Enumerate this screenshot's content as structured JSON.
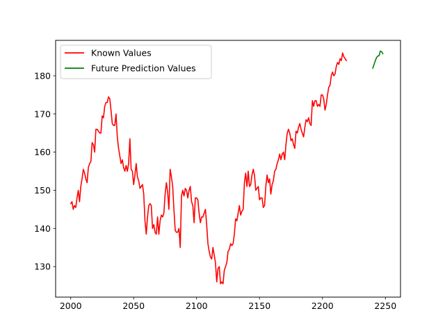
{
  "chart_data": {
    "type": "line",
    "title": "",
    "xlabel": "",
    "ylabel": "",
    "xlim": [
      1988,
      2262
    ],
    "ylim": [
      122.0,
      189.3
    ],
    "xticks": [
      2000,
      2050,
      2100,
      2150,
      2200,
      2250
    ],
    "yticks": [
      130,
      140,
      150,
      160,
      170,
      180
    ],
    "grid": false,
    "legend_position": "upper-left",
    "series": [
      {
        "name": "Known Values",
        "color": "#ff0000",
        "points": [
          [
            2000,
            146.5
          ],
          [
            2001,
            147.0
          ],
          [
            2002,
            145.0
          ],
          [
            2003,
            146.0
          ],
          [
            2004,
            145.5
          ],
          [
            2005,
            148.0
          ],
          [
            2006,
            150.0
          ],
          [
            2007,
            147.0
          ],
          [
            2008,
            151.0
          ],
          [
            2009,
            153.0
          ],
          [
            2010,
            155.5
          ],
          [
            2011,
            154.5
          ],
          [
            2012,
            153.0
          ],
          [
            2013,
            152.0
          ],
          [
            2014,
            156.0
          ],
          [
            2015,
            157.0
          ],
          [
            2016,
            157.5
          ],
          [
            2017,
            162.5
          ],
          [
            2018,
            162.0
          ],
          [
            2019,
            160.0
          ],
          [
            2020,
            166.0
          ],
          [
            2021,
            166.0
          ],
          [
            2022,
            165.5
          ],
          [
            2023,
            165.0
          ],
          [
            2024,
            165.0
          ],
          [
            2025,
            169.5
          ],
          [
            2026,
            169.0
          ],
          [
            2027,
            172.0
          ],
          [
            2028,
            173.0
          ],
          [
            2029,
            173.0
          ],
          [
            2030,
            174.5
          ],
          [
            2031,
            174.0
          ],
          [
            2032,
            171.0
          ],
          [
            2033,
            167.5
          ],
          [
            2034,
            167.0
          ],
          [
            2035,
            167.0
          ],
          [
            2036,
            170.0
          ],
          [
            2037,
            164.0
          ],
          [
            2038,
            161.0
          ],
          [
            2039,
            159.0
          ],
          [
            2040,
            157.0
          ],
          [
            2041,
            158.0
          ],
          [
            2042,
            156.0
          ],
          [
            2043,
            155.0
          ],
          [
            2044,
            156.5
          ],
          [
            2045,
            155.0
          ],
          [
            2046,
            157.0
          ],
          [
            2047,
            163.5
          ],
          [
            2048,
            155.5
          ],
          [
            2049,
            155.0
          ],
          [
            2050,
            151.5
          ],
          [
            2051,
            154.0
          ],
          [
            2052,
            157.0
          ],
          [
            2053,
            153.5
          ],
          [
            2054,
            152.5
          ],
          [
            2055,
            150.5
          ],
          [
            2056,
            151.0
          ],
          [
            2057,
            151.5
          ],
          [
            2058,
            149.0
          ],
          [
            2059,
            142.0
          ],
          [
            2060,
            138.5
          ],
          [
            2061,
            143.0
          ],
          [
            2062,
            146.0
          ],
          [
            2063,
            146.5
          ],
          [
            2064,
            146.0
          ],
          [
            2065,
            140.0
          ],
          [
            2066,
            141.0
          ],
          [
            2067,
            139.0
          ],
          [
            2068,
            138.5
          ],
          [
            2069,
            143.0
          ],
          [
            2070,
            138.5
          ],
          [
            2071,
            142.0
          ],
          [
            2072,
            143.5
          ],
          [
            2073,
            143.0
          ],
          [
            2074,
            144.0
          ],
          [
            2075,
            149.0
          ],
          [
            2076,
            152.0
          ],
          [
            2077,
            149.5
          ],
          [
            2078,
            145.0
          ],
          [
            2079,
            155.5
          ],
          [
            2080,
            153.5
          ],
          [
            2081,
            151.0
          ],
          [
            2082,
            145.0
          ],
          [
            2083,
            139.5
          ],
          [
            2084,
            139.0
          ],
          [
            2085,
            139.0
          ],
          [
            2086,
            140.0
          ],
          [
            2087,
            135.0
          ],
          [
            2088,
            148.5
          ],
          [
            2089,
            150.0
          ],
          [
            2090,
            148.5
          ],
          [
            2091,
            150.5
          ],
          [
            2092,
            150.0
          ],
          [
            2093,
            148.0
          ],
          [
            2094,
            150.0
          ],
          [
            2095,
            151.0
          ],
          [
            2096,
            147.0
          ],
          [
            2097,
            146.0
          ],
          [
            2098,
            141.5
          ],
          [
            2099,
            148.0
          ],
          [
            2100,
            148.0
          ],
          [
            2101,
            147.5
          ],
          [
            2102,
            144.0
          ],
          [
            2103,
            141.5
          ],
          [
            2104,
            143.0
          ],
          [
            2105,
            143.0
          ],
          [
            2106,
            144.0
          ],
          [
            2107,
            145.0
          ],
          [
            2108,
            141.0
          ],
          [
            2109,
            136.0
          ],
          [
            2110,
            134.0
          ],
          [
            2111,
            132.5
          ],
          [
            2112,
            132.0
          ],
          [
            2113,
            135.0
          ],
          [
            2114,
            133.0
          ],
          [
            2115,
            131.0
          ],
          [
            2116,
            126.0
          ],
          [
            2117,
            129.5
          ],
          [
            2118,
            130.0
          ],
          [
            2119,
            125.5
          ],
          [
            2120,
            126.0
          ],
          [
            2121,
            125.5
          ],
          [
            2122,
            129.0
          ],
          [
            2123,
            130.0
          ],
          [
            2124,
            131.0
          ],
          [
            2125,
            134.0
          ],
          [
            2126,
            134.5
          ],
          [
            2127,
            136.0
          ],
          [
            2128,
            135.5
          ],
          [
            2129,
            136.0
          ],
          [
            2130,
            138.5
          ],
          [
            2131,
            142.5
          ],
          [
            2132,
            142.0
          ],
          [
            2133,
            144.0
          ],
          [
            2134,
            146.0
          ],
          [
            2135,
            143.5
          ],
          [
            2136,
            144.5
          ],
          [
            2137,
            145.0
          ],
          [
            2138,
            152.0
          ],
          [
            2139,
            154.5
          ],
          [
            2140,
            151.0
          ],
          [
            2141,
            155.0
          ],
          [
            2142,
            151.0
          ],
          [
            2143,
            151.5
          ],
          [
            2144,
            154.0
          ],
          [
            2145,
            155.5
          ],
          [
            2146,
            154.0
          ],
          [
            2147,
            150.0
          ],
          [
            2148,
            150.5
          ],
          [
            2149,
            151.0
          ],
          [
            2150,
            147.5
          ],
          [
            2151,
            148.0
          ],
          [
            2152,
            148.0
          ],
          [
            2153,
            145.5
          ],
          [
            2154,
            146.0
          ],
          [
            2155,
            151.0
          ],
          [
            2156,
            154.0
          ],
          [
            2157,
            152.0
          ],
          [
            2158,
            153.0
          ],
          [
            2159,
            149.0
          ],
          [
            2160,
            151.5
          ],
          [
            2161,
            152.5
          ],
          [
            2162,
            155.0
          ],
          [
            2163,
            155.5
          ],
          [
            2164,
            157.0
          ],
          [
            2165,
            158.0
          ],
          [
            2166,
            159.5
          ],
          [
            2167,
            158.0
          ],
          [
            2168,
            159.5
          ],
          [
            2169,
            160.0
          ],
          [
            2170,
            158.0
          ],
          [
            2171,
            162.0
          ],
          [
            2172,
            165.0
          ],
          [
            2173,
            166.0
          ],
          [
            2174,
            165.0
          ],
          [
            2175,
            163.0
          ],
          [
            2176,
            163.5
          ],
          [
            2177,
            162.0
          ],
          [
            2178,
            161.0
          ],
          [
            2179,
            165.5
          ],
          [
            2180,
            165.0
          ],
          [
            2181,
            166.5
          ],
          [
            2182,
            167.5
          ],
          [
            2183,
            166.0
          ],
          [
            2184,
            165.0
          ],
          [
            2185,
            164.0
          ],
          [
            2186,
            166.5
          ],
          [
            2187,
            168.5
          ],
          [
            2188,
            168.0
          ],
          [
            2189,
            169.0
          ],
          [
            2190,
            167.5
          ],
          [
            2191,
            167.0
          ],
          [
            2192,
            173.5
          ],
          [
            2193,
            172.0
          ],
          [
            2194,
            173.5
          ],
          [
            2195,
            173.5
          ],
          [
            2196,
            172.0
          ],
          [
            2197,
            172.5
          ],
          [
            2198,
            172.0
          ],
          [
            2199,
            175.0
          ],
          [
            2200,
            175.0
          ],
          [
            2201,
            174.0
          ],
          [
            2202,
            171.0
          ],
          [
            2203,
            172.5
          ],
          [
            2204,
            175.0
          ],
          [
            2205,
            177.0
          ],
          [
            2206,
            177.5
          ],
          [
            2207,
            180.0
          ],
          [
            2208,
            181.0
          ],
          [
            2209,
            180.0
          ],
          [
            2210,
            180.5
          ],
          [
            2211,
            182.5
          ],
          [
            2212,
            183.5
          ],
          [
            2213,
            183.0
          ],
          [
            2214,
            184.5
          ],
          [
            2215,
            184.0
          ],
          [
            2216,
            186.0
          ],
          [
            2217,
            185.0
          ],
          [
            2218,
            184.5
          ],
          [
            2219,
            184.0
          ]
        ]
      },
      {
        "name": "Future Prediction Values",
        "color": "#008000",
        "points": [
          [
            2240,
            182.0
          ],
          [
            2241,
            183.0
          ],
          [
            2242,
            184.0
          ],
          [
            2243,
            184.8
          ],
          [
            2244,
            185.2
          ],
          [
            2245,
            185.3
          ],
          [
            2246,
            186.5
          ],
          [
            2247,
            186.3
          ],
          [
            2248,
            185.8
          ]
        ]
      }
    ]
  }
}
